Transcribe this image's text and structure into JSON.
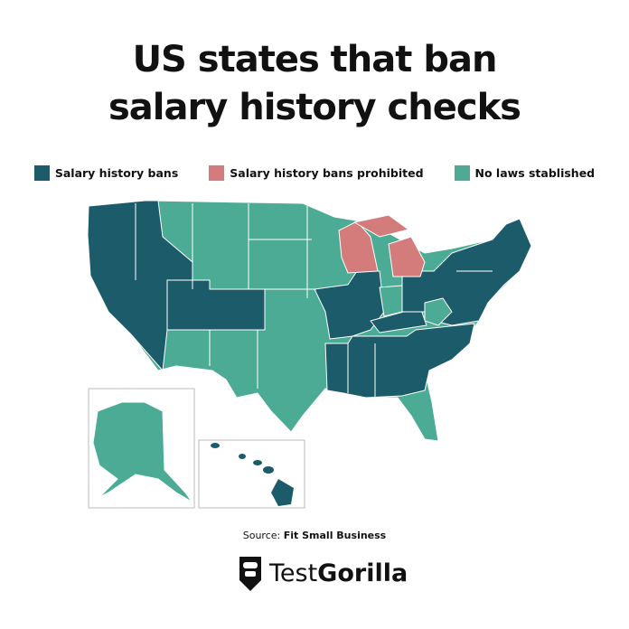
{
  "header": {
    "title_lines": [
      "US states that ban",
      "salary history checks"
    ]
  },
  "legend": [
    {
      "label": "Salary history bans"
    },
    {
      "label": "Salary history bans prohibited"
    },
    {
      "label": "No laws stablished"
    }
  ],
  "footer": {
    "source_prefix": "Source:",
    "source_name": "Fit Small Business",
    "brand_light": "Test",
    "brand_bold": "Gorilla"
  }
}
